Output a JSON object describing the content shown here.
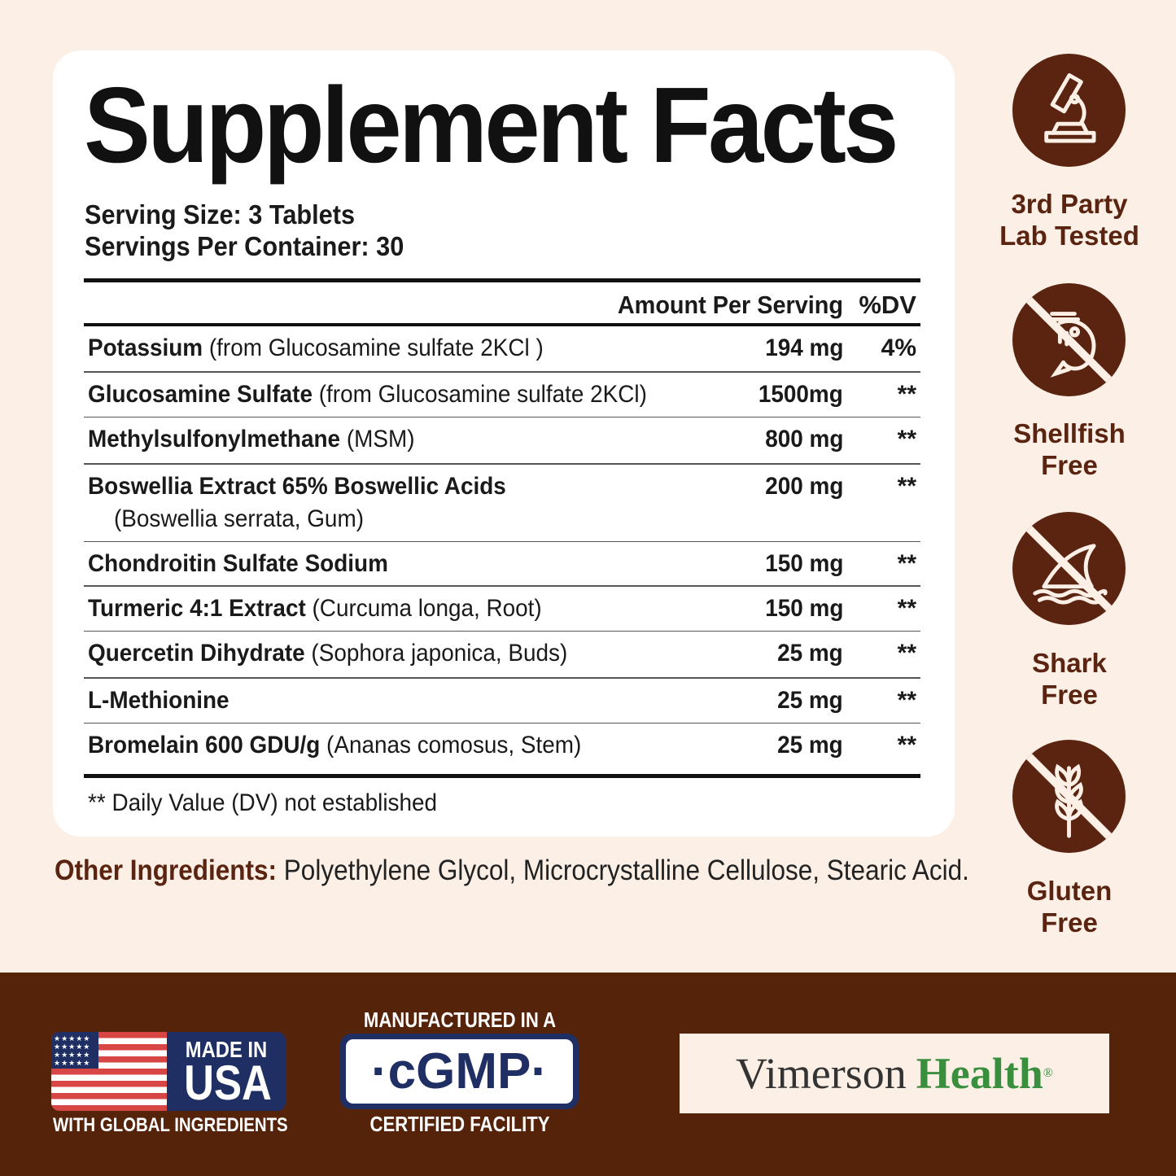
{
  "title": "Supplement Facts",
  "serving_size": "Serving Size: 3 Tablets",
  "servings_per_container": "Servings Per Container: 30",
  "table": {
    "header_amount": "Amount Per Serving",
    "header_dv": "%DV",
    "rows": [
      {
        "name": "Potassium",
        "detail": "(from Glucosamine sulfate 2KCl )",
        "amount": "194 mg",
        "dv": "4%"
      },
      {
        "name": "Glucosamine Sulfate",
        "detail": "(from Glucosamine sulfate 2KCl)",
        "amount": "1500mg",
        "dv": "**"
      },
      {
        "name": "Methylsulfonylmethane",
        "detail": "(MSM)",
        "amount": "800 mg",
        "dv": "**"
      },
      {
        "name": "Boswellia Extract 65% Boswellic Acids",
        "detail": "(Boswellia serrata, Gum)",
        "amount": "200 mg",
        "dv": "**"
      },
      {
        "name": "Chondroitin Sulfate Sodium",
        "detail": "",
        "amount": "150 mg",
        "dv": "**"
      },
      {
        "name": "Turmeric 4:1 Extract",
        "detail": "(Curcuma longa, Root)",
        "amount": "150 mg",
        "dv": "**"
      },
      {
        "name": "Quercetin Dihydrate",
        "detail": "(Sophora japonica, Buds)",
        "amount": "25 mg",
        "dv": "**"
      },
      {
        "name": "L-Methionine",
        "detail": "",
        "amount": "25 mg",
        "dv": "**"
      },
      {
        "name": "Bromelain 600 GDU/g",
        "detail": "(Ananas comosus, Stem)",
        "amount": "25 mg",
        "dv": "**"
      }
    ]
  },
  "footnote": "** Daily Value (DV) not established",
  "other_ingredients": {
    "label": "Other Ingredients:",
    "value": " Polyethylene Glycol, Microcrystalline Cellulose, Stearic Acid."
  },
  "badges": [
    {
      "icon": "microscope-icon",
      "line1": "3rd Party",
      "line2": "Lab Tested"
    },
    {
      "icon": "no-shellfish-icon",
      "line1": "Shellfish",
      "line2": "Free"
    },
    {
      "icon": "no-shark-icon",
      "line1": "Shark",
      "line2": "Free"
    },
    {
      "icon": "no-gluten-icon",
      "line1": "Gluten",
      "line2": "Free"
    }
  ],
  "footer": {
    "usa_top": "MADE IN",
    "usa_main": "USA",
    "usa_bottom": "WITH GLOBAL INGREDIENTS",
    "cgmp_top": "MANUFACTURED IN A",
    "cgmp_main": "·cGMP·",
    "cgmp_bottom": "CERTIFIED FACILITY",
    "brand_a": "Vimerson",
    "brand_b": "Health",
    "brand_reg": "®"
  },
  "colors": {
    "background": "#fbefe6",
    "brown": "#5a2410",
    "banner": "#55220a",
    "navy": "#1f2f63",
    "green": "#3a8f3e"
  }
}
